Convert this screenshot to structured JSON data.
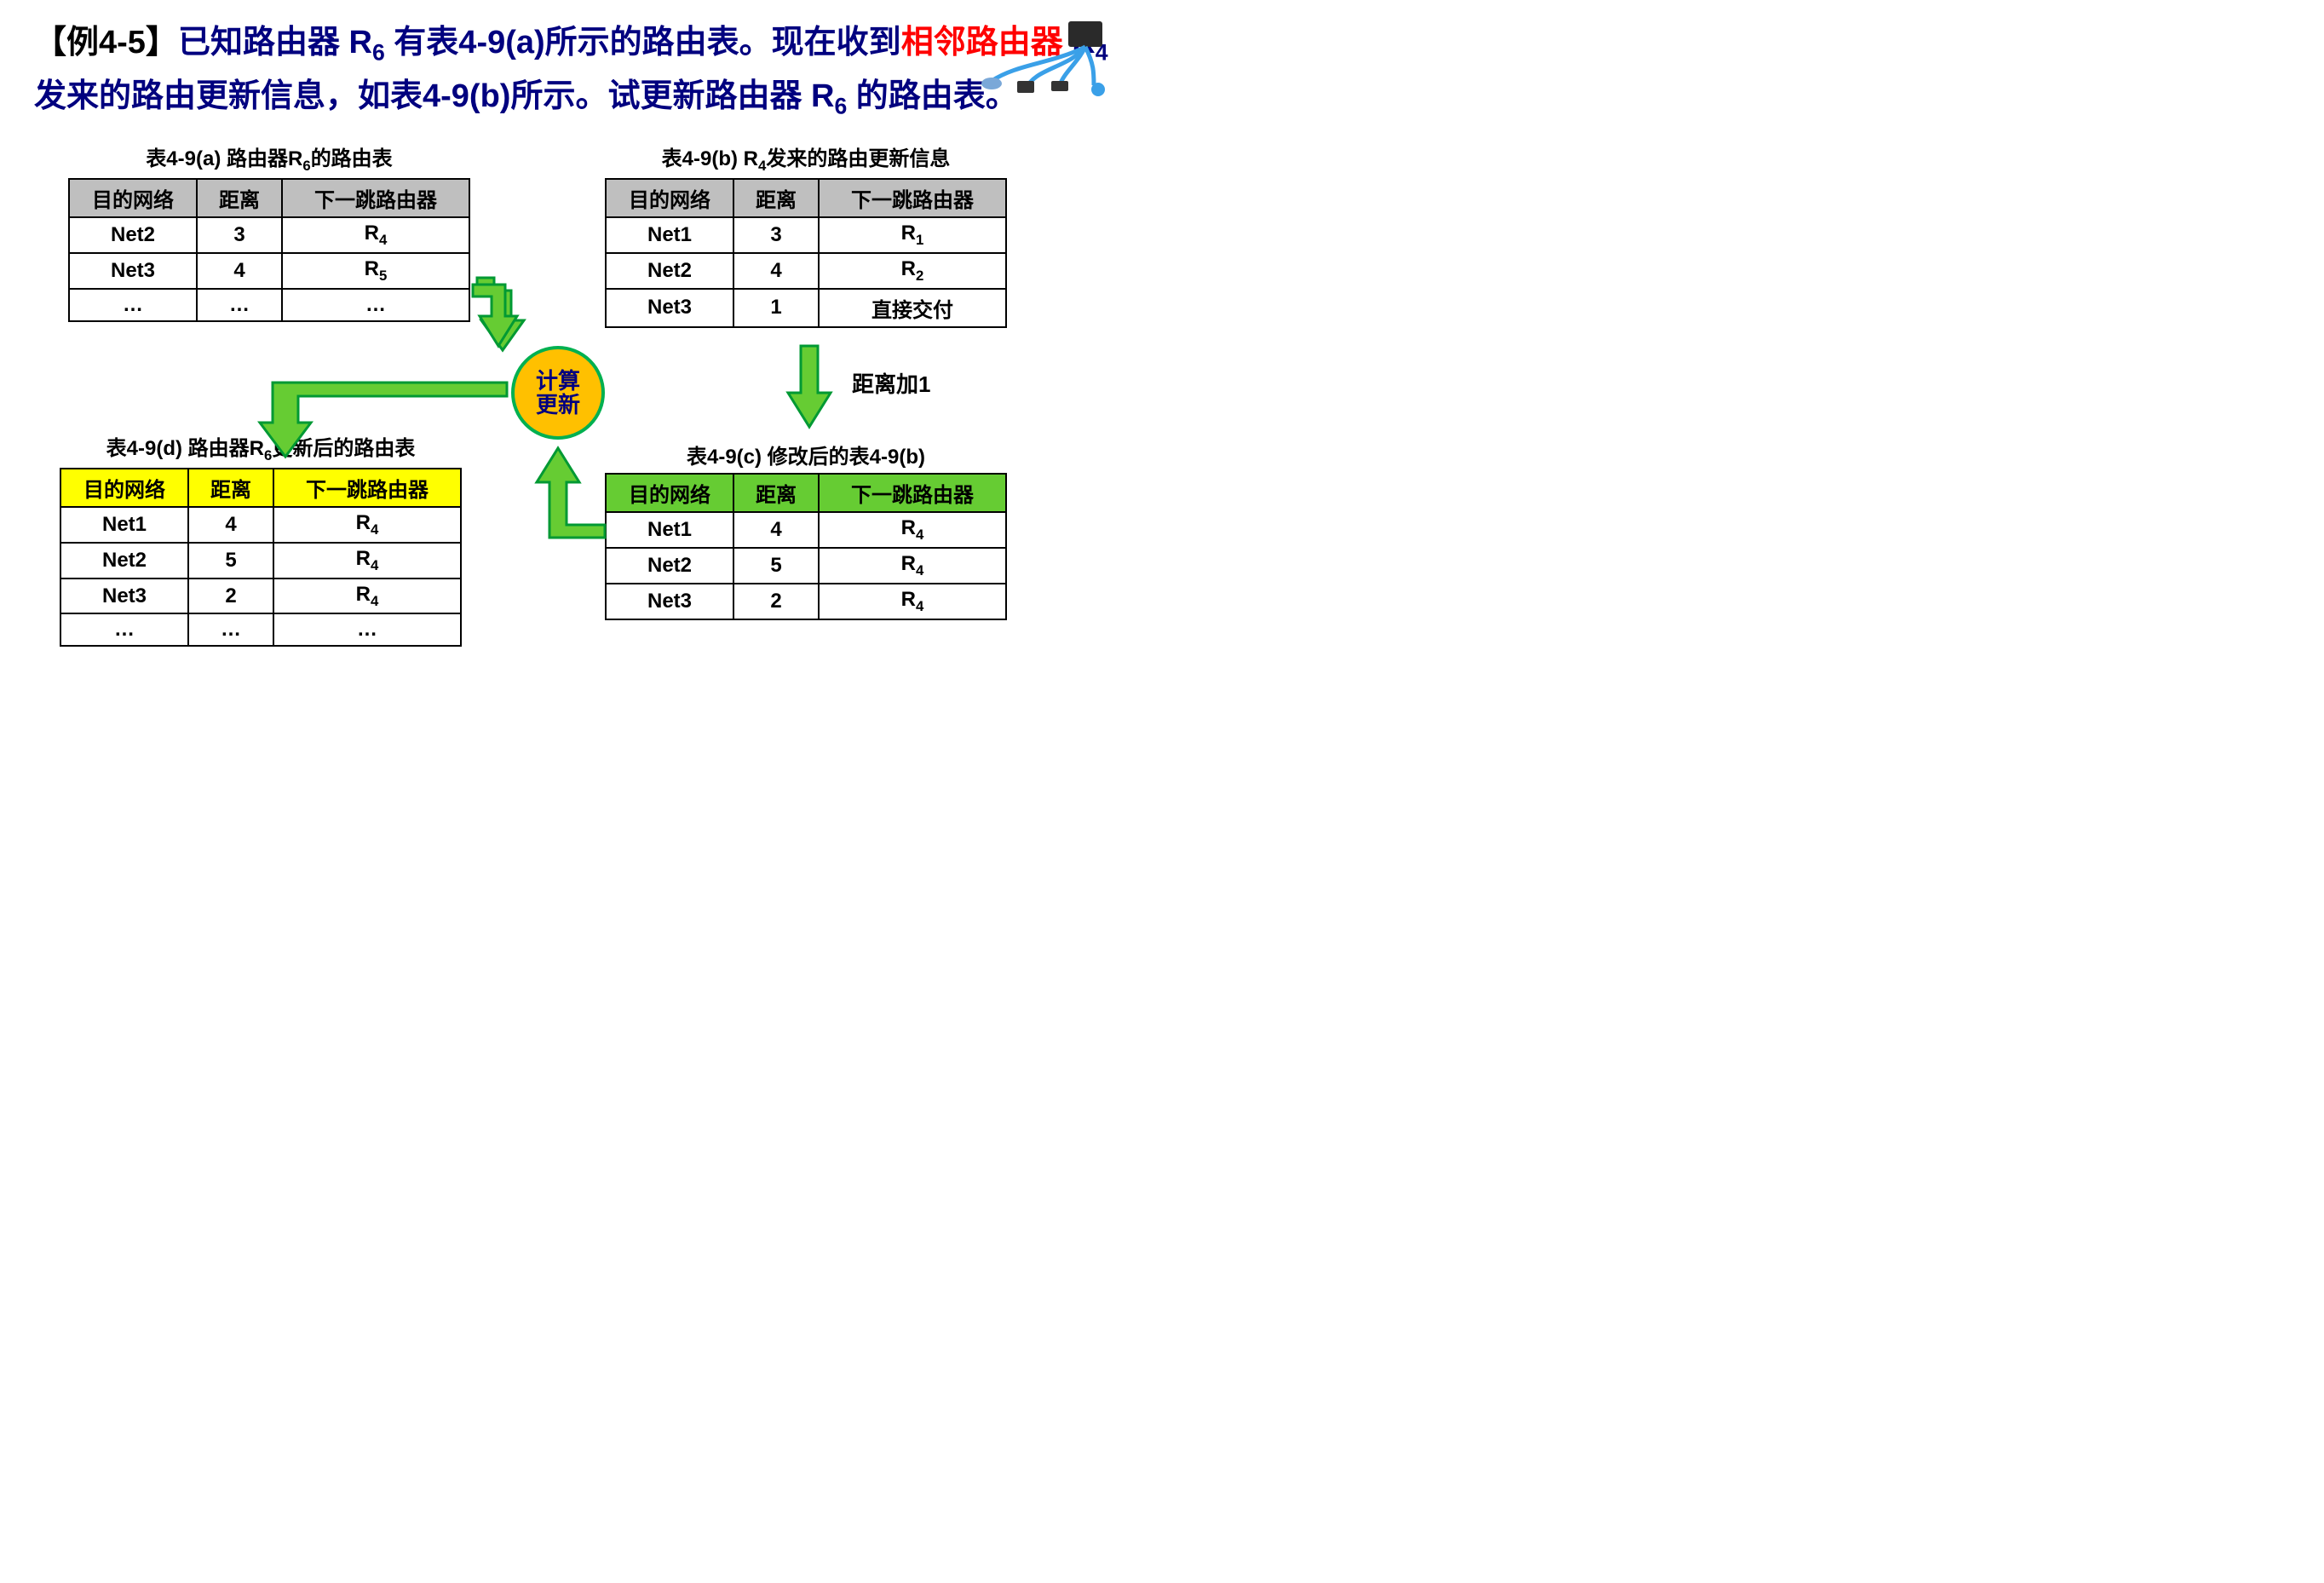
{
  "title": {
    "prefix": "【例4-5】",
    "t1a": "已知路由器 R",
    "t1sub": "6",
    "t1b": " 有表4-9(a)所示的路由表。现在收到",
    "t2red": "相邻路由器",
    "t2a": " R",
    "t2sub": "4",
    "t2b": " 发来的路由更新信息，如表4-9(b)所示。试更新路由器 R",
    "t3sub": "6",
    "t3c": " 的路由表。"
  },
  "arrow_fill": "#66cc33",
  "arrow_stroke": "#009933",
  "circle": {
    "line1": "计算",
    "line2": "更新"
  },
  "dist_label": "距离加1",
  "tableA": {
    "caption_a": "表4-9(a)  路由器R",
    "caption_sub": "6",
    "caption_b": "的路由表",
    "headers": [
      "目的网络",
      "距离",
      "下一跳路由器"
    ],
    "rows": [
      {
        "c1": "Net2",
        "c2": "3",
        "c3": "R",
        "c3sub": "4"
      },
      {
        "c1": "Net3",
        "c2": "4",
        "c3": "R",
        "c3sub": "5"
      },
      {
        "c1": "…",
        "c2": "…",
        "c3": "…",
        "c3sub": ""
      }
    ]
  },
  "tableB": {
    "caption_a": "表4-9(b)  R",
    "caption_sub": "4",
    "caption_b": "发来的路由更新信息",
    "headers": [
      "目的网络",
      "距离",
      "下一跳路由器"
    ],
    "rows": [
      {
        "c1": "Net1",
        "c2": "3",
        "c3": "R",
        "c3sub": "1"
      },
      {
        "c1": "Net2",
        "c2": "4",
        "c3": "R",
        "c3sub": "2"
      },
      {
        "c1": "Net3",
        "c2": "1",
        "c3": "直接交付",
        "c3sub": ""
      }
    ]
  },
  "tableC": {
    "caption": "表4-9(c)  修改后的表4-9(b)",
    "headers": [
      "目的网络",
      "距离",
      "下一跳路由器"
    ],
    "rows": [
      {
        "c1": "Net1",
        "c2": "4",
        "c3": "R",
        "c3sub": "4"
      },
      {
        "c1": "Net2",
        "c2": "5",
        "c3": "R",
        "c3sub": "4"
      },
      {
        "c1": "Net3",
        "c2": "2",
        "c3": "R",
        "c3sub": "4"
      }
    ]
  },
  "tableD": {
    "caption_a": "表4-9(d)  路由器R",
    "caption_sub": "6",
    "caption_b": "更新后的路由表",
    "headers": [
      "目的网络",
      "距离",
      "下一跳路由器"
    ],
    "rows": [
      {
        "c1": "Net1",
        "c2": "4",
        "c3": "R",
        "c3sub": "4"
      },
      {
        "c1": "Net2",
        "c2": "5",
        "c3": "R",
        "c3sub": "4"
      },
      {
        "c1": "Net3",
        "c2": "2",
        "c3": "R",
        "c3sub": "4"
      },
      {
        "c1": "…",
        "c2": "…",
        "c3": "…",
        "c3sub": ""
      }
    ]
  }
}
